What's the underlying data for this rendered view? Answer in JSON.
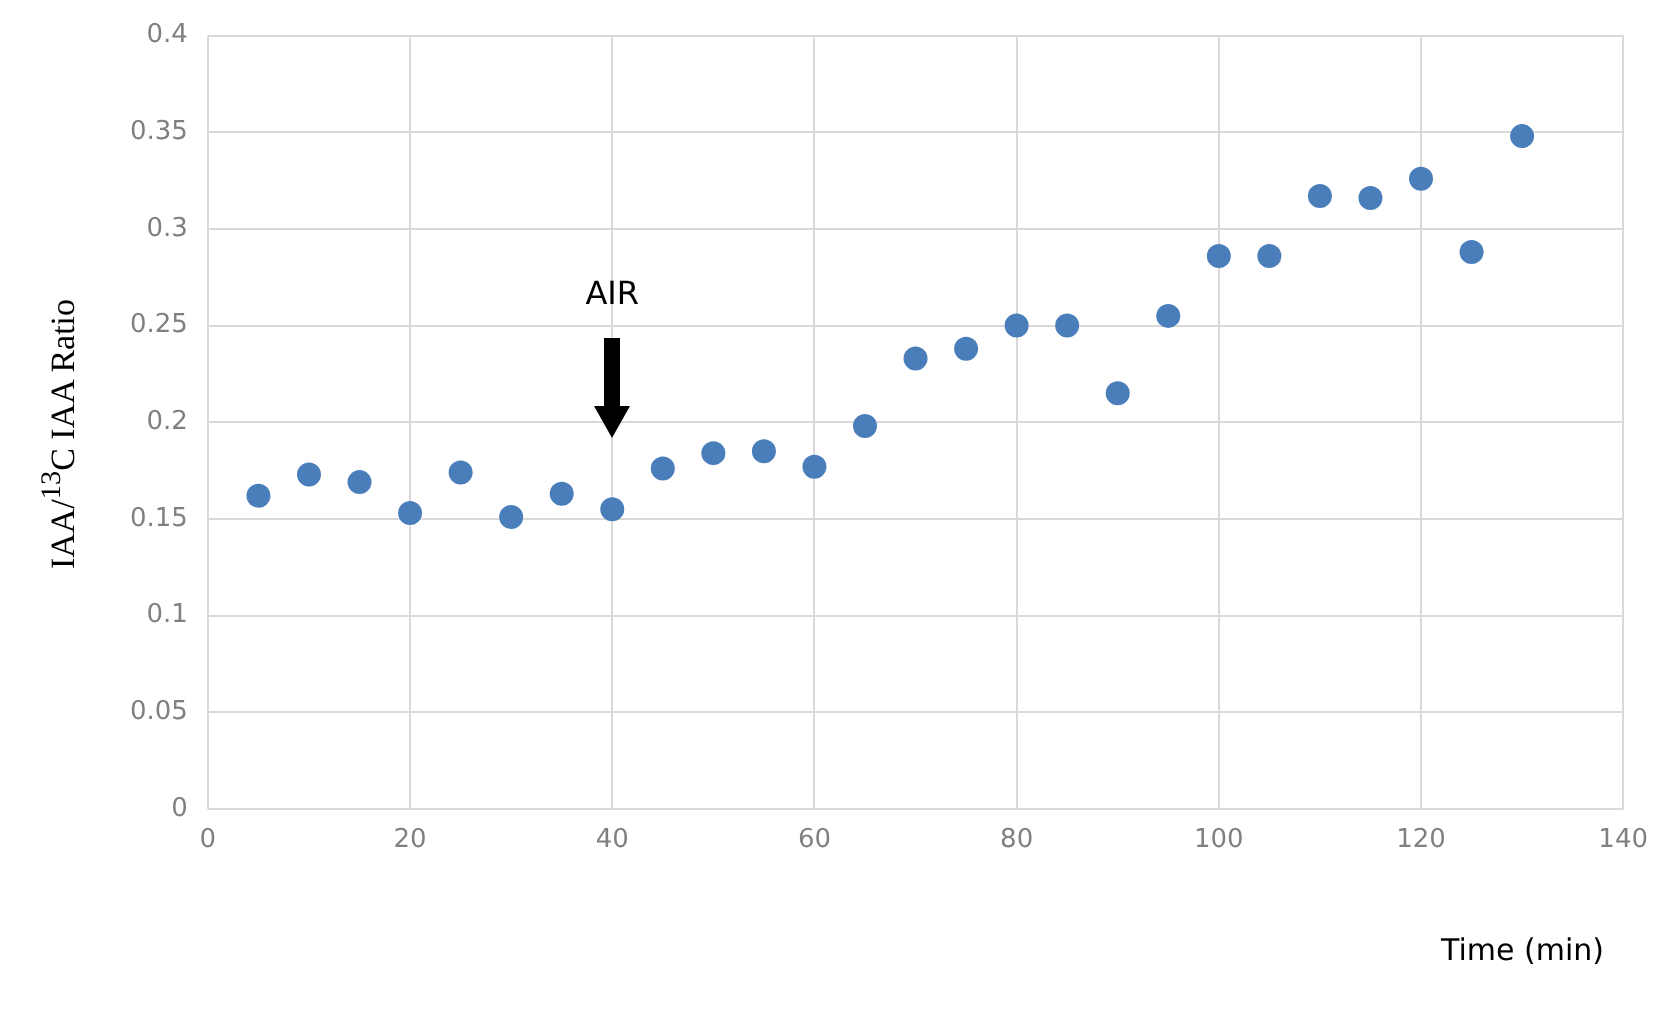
{
  "chart_data": {
    "type": "scatter",
    "xlabel": "Time (min)",
    "ylabel": "IAA/$^{13}$C IAA Ratio",
    "x": [
      5,
      10,
      15,
      20,
      25,
      30,
      35,
      40,
      45,
      50,
      55,
      60,
      65,
      70,
      75,
      80,
      85,
      90,
      95,
      100,
      105,
      110,
      115,
      120,
      125,
      130
    ],
    "series": [
      {
        "color": "#4a7ebb",
        "values": [
          0.162,
          0.173,
          0.169,
          0.153,
          0.174,
          0.151,
          0.163,
          0.155,
          0.176,
          0.184,
          0.185,
          0.177,
          0.198,
          0.233,
          0.238,
          0.25,
          0.25,
          0.215,
          0.255,
          0.286,
          0.286,
          0.317,
          0.316,
          0.326,
          0.288,
          0.348
        ]
      }
    ],
    "xlim": [
      0,
      140
    ],
    "xticks": [
      0,
      20,
      40,
      60,
      80,
      100,
      120,
      140
    ],
    "ylim": [
      0,
      0.4
    ],
    "yticks": [
      0,
      0.05,
      0.1,
      0.15,
      0.2,
      0.25,
      0.3,
      0.35,
      0.4
    ],
    "grid": true,
    "marker": "circle",
    "annotations": [
      "AIR"
    ]
  }
}
